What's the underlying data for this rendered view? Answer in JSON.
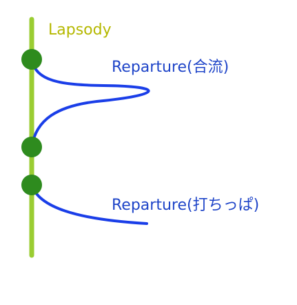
{
  "diagram": {
    "main_line": {
      "label": "Lapsody",
      "color": "#9acd32"
    },
    "branches": [
      {
        "label": "Reparture(合流)",
        "color": "#1a3ee8",
        "type": "merge"
      },
      {
        "label": "Reparture(打ちっぱ)",
        "color": "#1a3ee8",
        "type": "dangling"
      }
    ],
    "node_color": "#2e8b1e",
    "label_colors": {
      "main": "#b5b800",
      "branch": "#1e44c8"
    }
  }
}
